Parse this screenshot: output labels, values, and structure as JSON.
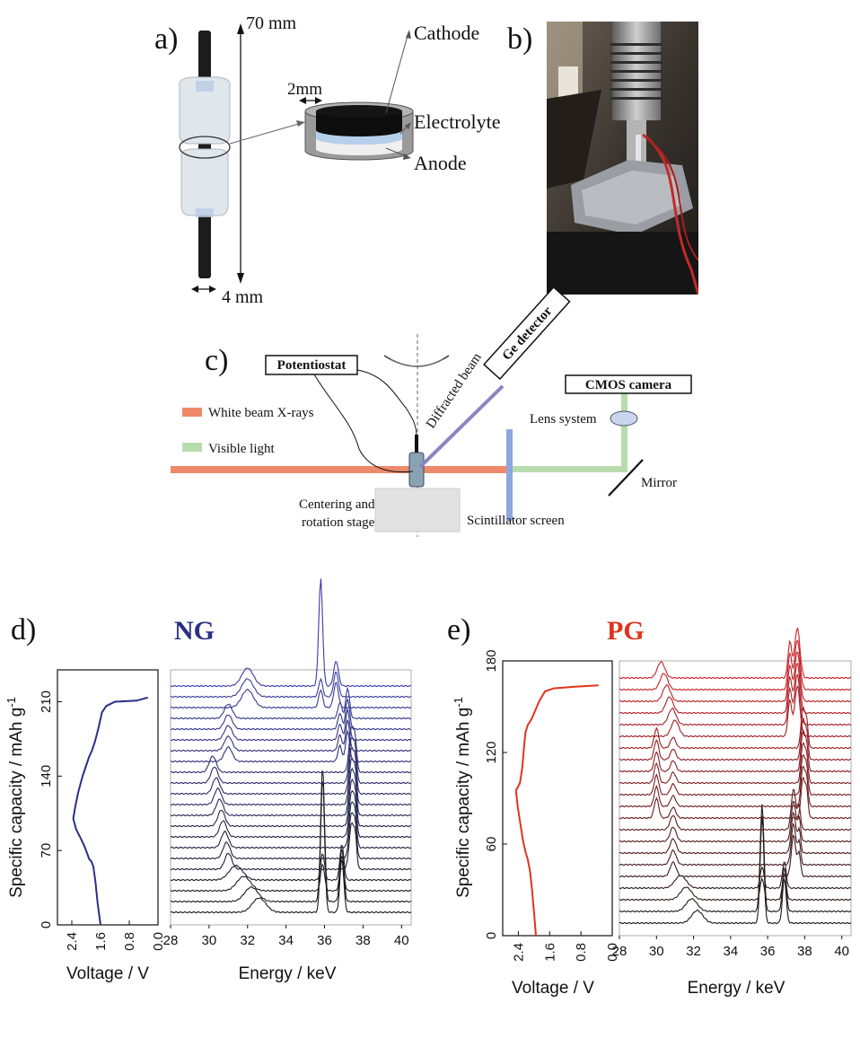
{
  "panel_a": {
    "label": "a)",
    "height_dim": "70 mm",
    "width_dim": "4 mm",
    "sep_dim": "2mm",
    "layers": [
      "Cathode",
      "Electrolyte",
      "Anode"
    ]
  },
  "panel_b": {
    "label": "b)"
  },
  "panel_c": {
    "label": "c)",
    "potentiostat": "Potentiostat",
    "ge_detector": "Ge detector",
    "diffracted_beam": "Diffracted beam",
    "cmos_camera": "CMOS camera",
    "lens_system": "Lens system",
    "mirror": "Mirror",
    "scintillator": "Scintillator screen",
    "stage_line1": "Centering and",
    "stage_line2": "rotation stage",
    "legend": [
      {
        "label": "White beam X-rays",
        "color": "#ee8a6a"
      },
      {
        "label": "Visible light",
        "color": "#b8dcae"
      }
    ],
    "colors": {
      "diffracted": "#8a86c2",
      "scintillator": "#8fa8dc",
      "stage": "#e2e2e2"
    }
  },
  "chart_data": [
    {
      "id": "d-voltage",
      "panel_label": "d)",
      "type": "line",
      "xlabel": "Voltage / V",
      "ylabel": "Specific capacity / mAh g",
      "ylabel_sup": "-1",
      "x_reversed": true,
      "xlim": [
        2.8,
        0.0
      ],
      "ylim": [
        0,
        240
      ],
      "xticks": [
        "2.4",
        "1.6",
        "0.8",
        "0.0"
      ],
      "xtick_values": [
        2.4,
        1.6,
        0.8,
        0.0
      ],
      "yticks": [
        "0",
        "70",
        "140",
        "210"
      ],
      "ytick_values": [
        0,
        70,
        140,
        210
      ],
      "color": "#2a2f86",
      "x": [
        1.6,
        1.68,
        1.74,
        1.8,
        1.86,
        1.92,
        1.98,
        2.06,
        2.16,
        2.28,
        2.36,
        2.3,
        2.22,
        2.1,
        2.0,
        1.92,
        1.84,
        1.76,
        1.66,
        1.56,
        1.44,
        1.2,
        0.6,
        0.28
      ],
      "y": [
        0,
        20,
        40,
        55,
        60,
        62,
        68,
        75,
        82,
        90,
        100,
        112,
        125,
        140,
        150,
        158,
        164,
        172,
        185,
        200,
        206,
        210,
        211,
        214
      ]
    },
    {
      "id": "d-spectra",
      "type": "line",
      "title": "NG",
      "title_color": "#2a2f86",
      "xlabel": "Energy / keV",
      "xlim": [
        28,
        40.5
      ],
      "xticks": [
        "28",
        "30",
        "32",
        "34",
        "36",
        "38",
        "40"
      ],
      "xtick_values": [
        28,
        30,
        32,
        34,
        36,
        38,
        40
      ],
      "n_curves": 22,
      "color_start": "#1a1a1a",
      "color_end": "#3a3ca6"
    },
    {
      "id": "e-voltage",
      "panel_label": "e)",
      "type": "line",
      "xlabel": "Voltage / V",
      "ylabel": "Specific capacity / mAh g",
      "ylabel_sup": "-1",
      "x_reversed": true,
      "xlim": [
        2.8,
        0.0
      ],
      "ylim": [
        0,
        180
      ],
      "xticks": [
        "2.4",
        "1.6",
        "0.8",
        "0.0"
      ],
      "xtick_values": [
        2.4,
        1.6,
        0.8,
        0.0
      ],
      "yticks": [
        "0",
        "60",
        "120",
        "180"
      ],
      "ytick_values": [
        0,
        60,
        120,
        180
      ],
      "color": "#e0341c",
      "x": [
        1.95,
        2.0,
        2.05,
        2.1,
        2.16,
        2.22,
        2.28,
        2.34,
        2.42,
        2.46,
        2.36,
        2.3,
        2.26,
        2.22,
        2.16,
        2.06,
        1.96,
        1.86,
        1.72,
        1.5,
        1.0,
        0.35
      ],
      "y": [
        0,
        15,
        30,
        42,
        50,
        55,
        62,
        72,
        85,
        95,
        100,
        110,
        122,
        133,
        138,
        142,
        148,
        154,
        160,
        162,
        163,
        164
      ]
    },
    {
      "id": "e-spectra",
      "type": "line",
      "title": "PG",
      "title_color": "#e0341c",
      "xlabel": "Energy / keV",
      "xlim": [
        28,
        40.5
      ],
      "xticks": [
        "28",
        "30",
        "32",
        "34",
        "36",
        "38",
        "40"
      ],
      "xtick_values": [
        28,
        30,
        32,
        34,
        36,
        38,
        40
      ],
      "n_curves": 22,
      "color_start": "#1a1a1a",
      "color_end": "#cc1f24"
    }
  ]
}
